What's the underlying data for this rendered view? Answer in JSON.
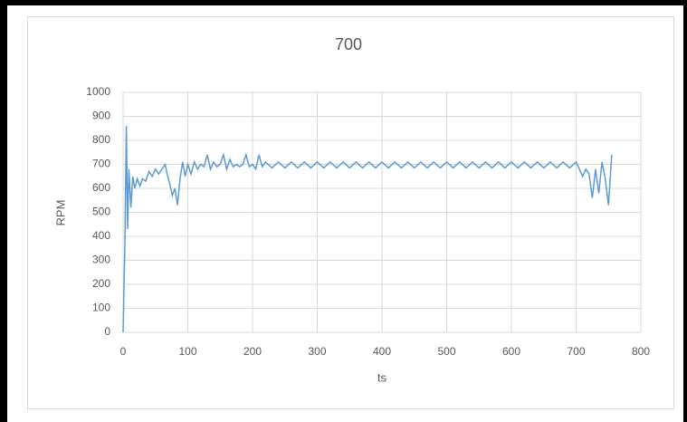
{
  "chart_data": {
    "type": "line",
    "title": "700",
    "x_label": "ts",
    "y_label": "RPM",
    "xlim": [
      0,
      800
    ],
    "xticks": [
      0,
      100,
      200,
      300,
      400,
      500,
      600,
      700,
      800
    ],
    "ylim": [
      0,
      1000
    ],
    "yticks": [
      0,
      100,
      200,
      300,
      400,
      500,
      600,
      700,
      800,
      900,
      1000
    ],
    "grid": true,
    "x": [
      0,
      3,
      5,
      7,
      9,
      12,
      15,
      18,
      22,
      26,
      30,
      35,
      40,
      45,
      50,
      55,
      60,
      65,
      68,
      72,
      76,
      80,
      84,
      88,
      92,
      96,
      100,
      105,
      110,
      115,
      120,
      125,
      130,
      135,
      140,
      145,
      150,
      155,
      160,
      165,
      170,
      175,
      180,
      185,
      190,
      195,
      200,
      205,
      210,
      215,
      220,
      230,
      240,
      250,
      260,
      270,
      280,
      290,
      300,
      310,
      320,
      330,
      340,
      350,
      360,
      370,
      380,
      390,
      400,
      410,
      420,
      430,
      440,
      450,
      460,
      470,
      480,
      490,
      500,
      510,
      520,
      530,
      540,
      550,
      560,
      570,
      580,
      590,
      600,
      610,
      620,
      630,
      640,
      650,
      660,
      670,
      680,
      690,
      700,
      705,
      710,
      715,
      720,
      725,
      730,
      735,
      740,
      745,
      750,
      755
    ],
    "series": [
      {
        "color": "#5b9bd5",
        "values": [
          0,
          400,
          860,
          430,
          680,
          520,
          650,
          600,
          640,
          610,
          640,
          630,
          670,
          650,
          680,
          660,
          680,
          700,
          660,
          620,
          570,
          600,
          530,
          640,
          710,
          650,
          700,
          660,
          710,
          680,
          700,
          690,
          740,
          680,
          710,
          690,
          700,
          740,
          680,
          720,
          690,
          700,
          690,
          700,
          740,
          690,
          700,
          680,
          740,
          690,
          710,
          685,
          710,
          685,
          710,
          685,
          710,
          685,
          710,
          685,
          710,
          685,
          710,
          685,
          710,
          685,
          710,
          685,
          710,
          685,
          710,
          685,
          710,
          685,
          710,
          685,
          710,
          685,
          710,
          685,
          710,
          685,
          710,
          685,
          710,
          685,
          710,
          685,
          710,
          685,
          710,
          685,
          710,
          685,
          710,
          685,
          710,
          685,
          710,
          680,
          650,
          680,
          660,
          560,
          680,
          580,
          710,
          640,
          530,
          740
        ]
      }
    ]
  }
}
